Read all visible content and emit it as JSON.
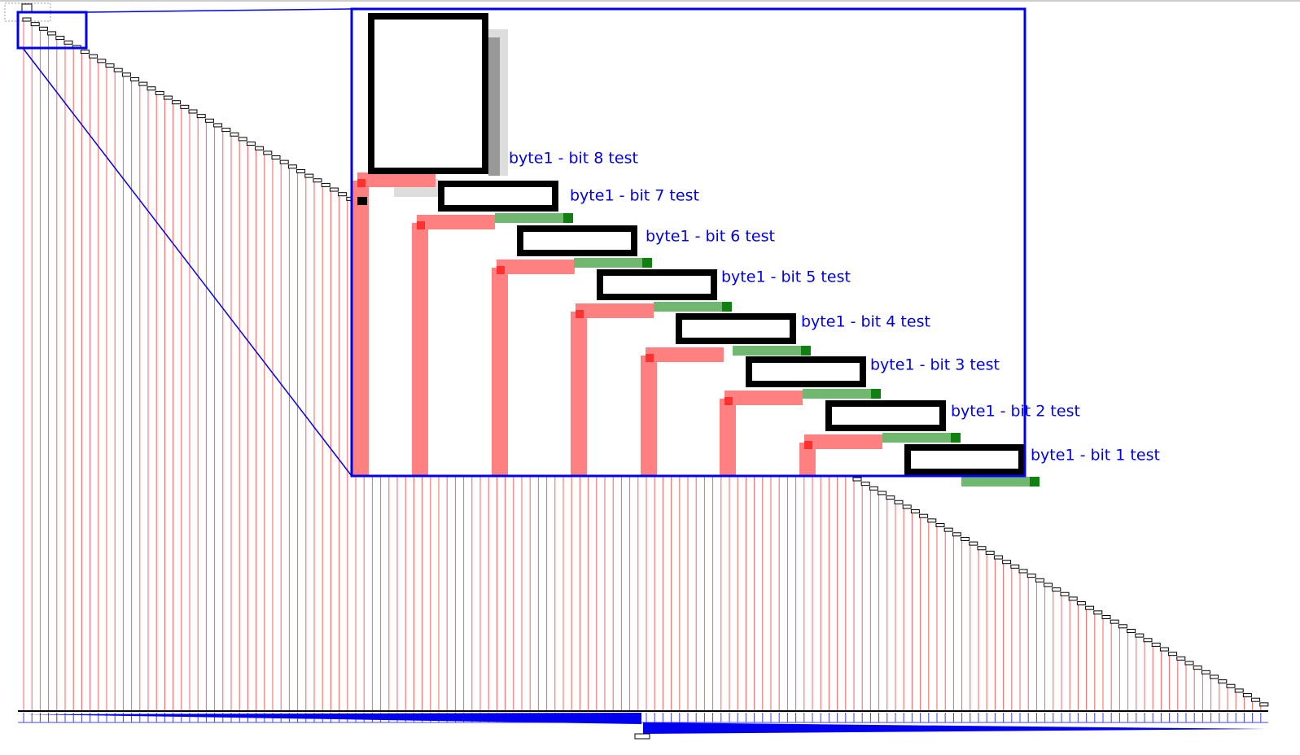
{
  "callout": {
    "nodes": [
      {
        "label": "byte1 - bit 8 test"
      },
      {
        "label": "byte1 - bit 7 test"
      },
      {
        "label": "byte1 - bit 6 test"
      },
      {
        "label": "byte1 - bit 5 test"
      },
      {
        "label": "byte1 - bit 4 test"
      },
      {
        "label": "byte1 - bit 3 test"
      },
      {
        "label": "byte1 - bit 2 test"
      },
      {
        "label": "byte1 - bit 1 test"
      }
    ]
  }
}
